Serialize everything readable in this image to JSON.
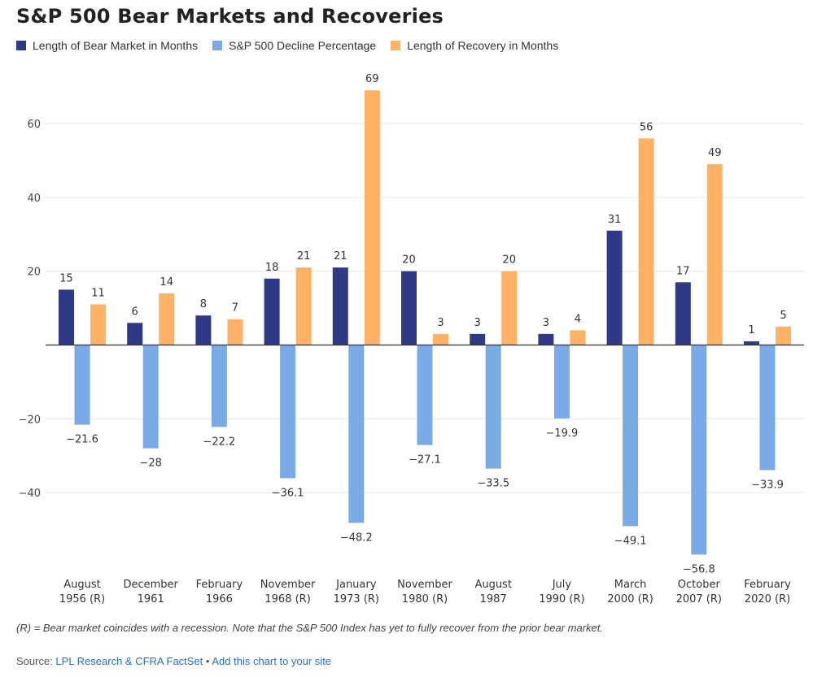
{
  "colors": {
    "bear_length": "#2f3a86",
    "decline": "#7aaae6",
    "recovery": "#ffb266"
  },
  "chart_data": {
    "type": "bar",
    "title": "S&P 500 Bear Markets and Recoveries",
    "categories": [
      [
        "August",
        "1956 (R)"
      ],
      [
        "December",
        "1961"
      ],
      [
        "February",
        "1966"
      ],
      [
        "November",
        "1968 (R)"
      ],
      [
        "January",
        "1973 (R)"
      ],
      [
        "November",
        "1980 (R)"
      ],
      [
        "August",
        "1987"
      ],
      [
        "July",
        "1990 (R)"
      ],
      [
        "March",
        "2000 (R)"
      ],
      [
        "October",
        "2007 (R)"
      ],
      [
        "February",
        "2020 (R)"
      ]
    ],
    "series": [
      {
        "name": "Length of Bear Market in Months",
        "values": [
          15,
          6,
          8,
          18,
          21,
          20,
          3,
          3,
          31,
          17,
          1
        ]
      },
      {
        "name": "S&P 500 Decline Percentage",
        "values": [
          -21.6,
          -28,
          -22.2,
          -36.1,
          -48.2,
          -27.1,
          -33.5,
          -19.9,
          -49.1,
          -56.8,
          -33.9
        ]
      },
      {
        "name": "Length of Recovery in Months",
        "values": [
          11,
          14,
          7,
          21,
          69,
          3,
          20,
          4,
          56,
          49,
          5
        ]
      }
    ],
    "data_labels": [
      [
        "15",
        "6",
        "8",
        "18",
        "21",
        "20",
        "3",
        "3",
        "31",
        "17",
        "1"
      ],
      [
        "−21.6",
        "−28",
        "−22.2",
        "−36.1",
        "−48.2",
        "−27.1",
        "−33.5",
        "−19.9",
        "−49.1",
        "−56.8",
        "−33.9"
      ],
      [
        "11",
        "14",
        "7",
        "21",
        "69",
        "3",
        "20",
        "4",
        "56",
        "49",
        "5"
      ]
    ],
    "yticks": [
      60,
      40,
      20,
      -20,
      -40
    ],
    "ytick_labels": [
      "60",
      "40",
      "20",
      "−20",
      "−40"
    ],
    "ylim": [
      -60,
      72
    ],
    "grid": true,
    "legend_position": "top-left"
  },
  "footnote": "(R) = Bear market coincides with a recession. Note that the S&P 500 Index has yet to fully recover from the prior bear market.",
  "source": {
    "prefix": "Source: ",
    "link1": "LPL Research & CFRA FactSet",
    "separator": " • ",
    "link2": "Add this chart to your site"
  }
}
